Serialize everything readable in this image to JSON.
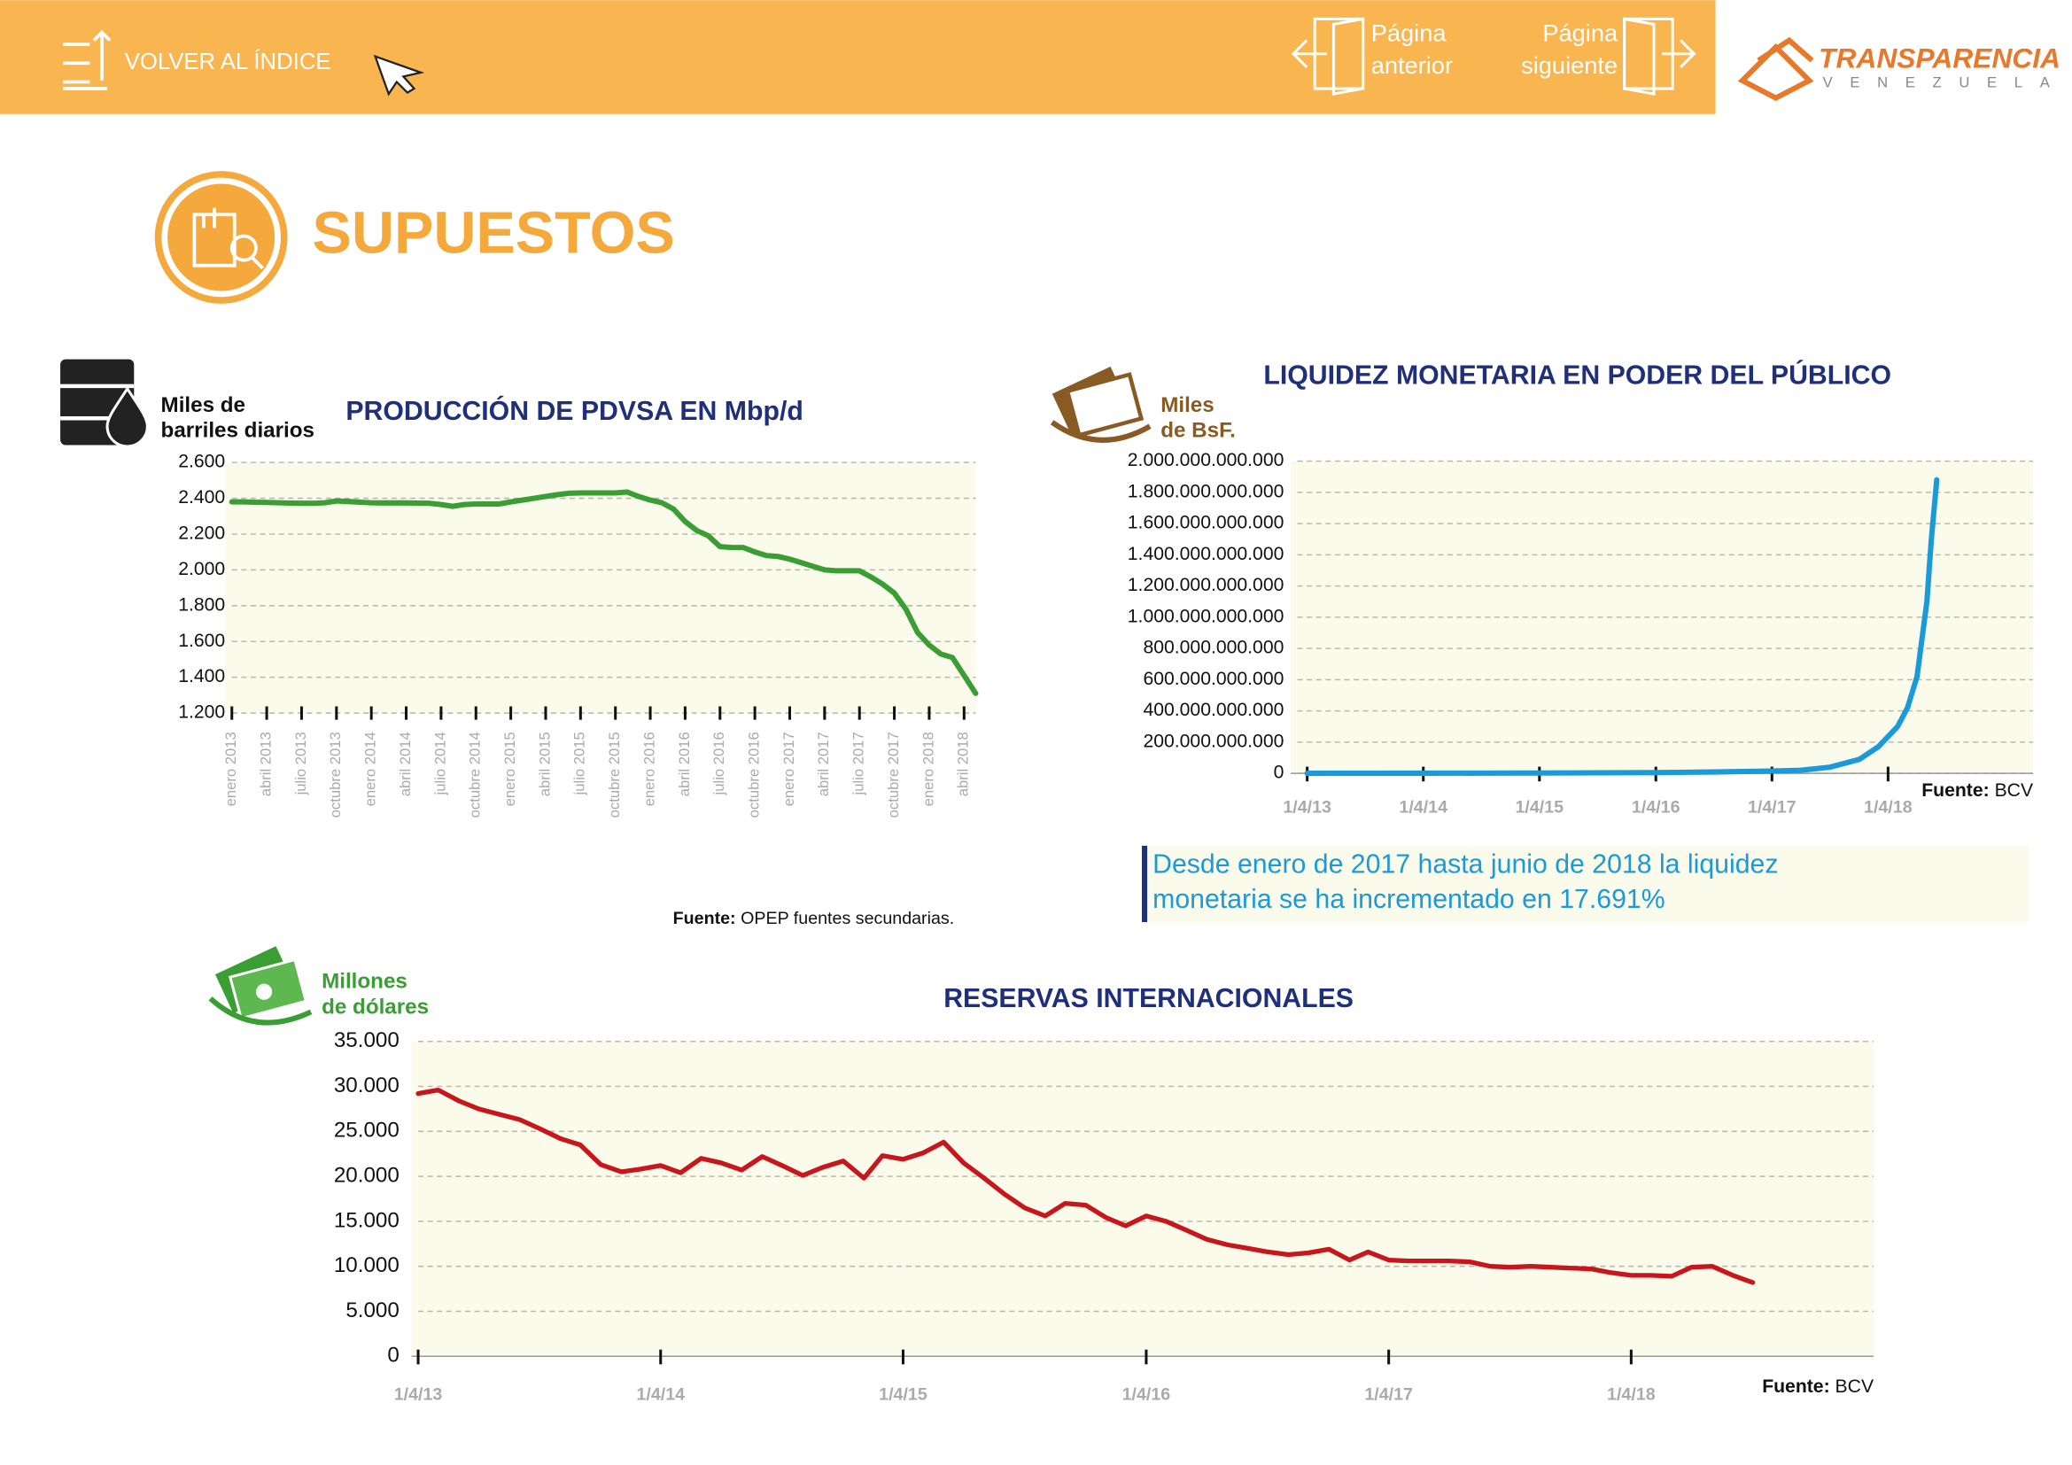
{
  "header": {
    "back": "VOLVER AL ÍNDICE",
    "prev": [
      "Página",
      "anterior"
    ],
    "next": [
      "Página",
      "siguiente"
    ],
    "logo": [
      "TRANSPARENCIA",
      "VENEZUELA"
    ]
  },
  "section_title": "SUPUESTOS",
  "note": [
    "Desde enero de 2017 hasta junio de 2018 la liquidez",
    "monetaria se ha incrementado en 17.691%"
  ],
  "chart_data": [
    {
      "type": "line",
      "title": "PRODUCCIÓN DE PDVSA EN Mbp/d",
      "y_axis_label": [
        "Miles de",
        "barriles diarios"
      ],
      "source": [
        "Fuente:",
        "OPEP fuentes secundarias."
      ],
      "color": "#3a9e35",
      "grid": true,
      "categories": [
        "enero 2013",
        null,
        null,
        "abril 2013",
        null,
        null,
        "julio 2013",
        null,
        null,
        "octubre 2013",
        null,
        null,
        "enero 2014",
        null,
        null,
        "abril 2014",
        null,
        null,
        "julio 2014",
        null,
        null,
        "octubre 2014",
        null,
        null,
        "enero 2015",
        null,
        null,
        "abril 2015",
        null,
        null,
        "julio 2015",
        null,
        null,
        "octubre 2015",
        null,
        null,
        "enero 2016",
        null,
        null,
        "abril 2016",
        null,
        null,
        "julio 2016",
        null,
        null,
        "octubre 2016",
        null,
        null,
        "enero 2017",
        null,
        null,
        "abril 2017",
        null,
        null,
        "julio 2017",
        null,
        null,
        "octubre 2017",
        null,
        null,
        "enero 2018",
        null,
        null,
        "abril 2018",
        null
      ],
      "values": [
        2380,
        2380,
        2378,
        2377,
        2375,
        2373,
        2372,
        2372,
        2375,
        2385,
        2382,
        2378,
        2375,
        2374,
        2374,
        2374,
        2373,
        2372,
        2365,
        2355,
        2365,
        2368,
        2368,
        2368,
        2380,
        2390,
        2400,
        2410,
        2420,
        2428,
        2430,
        2430,
        2430,
        2430,
        2435,
        2410,
        2390,
        2375,
        2340,
        2270,
        2220,
        2190,
        2130,
        2125,
        2125,
        2100,
        2080,
        2075,
        2060,
        2040,
        2020,
        2000,
        1995,
        1995,
        1995,
        1960,
        1920,
        1870,
        1780,
        1650,
        1580,
        1530,
        1510,
        1410,
        1310
      ],
      "ylim": [
        1200,
        2600
      ],
      "yticks": [
        {
          "value": 1200,
          "label": "1.200"
        },
        {
          "value": 1400,
          "label": "1.400"
        },
        {
          "value": 1600,
          "label": "1.600"
        },
        {
          "value": 1800,
          "label": "1.800"
        },
        {
          "value": 2000,
          "label": "2.000"
        },
        {
          "value": 2200,
          "label": "2.200"
        },
        {
          "value": 2400,
          "label": "2.400"
        },
        {
          "value": 2600,
          "label": "2.600"
        }
      ]
    },
    {
      "type": "line",
      "title": "LIQUIDEZ MONETARIA EN PODER DEL PÚBLICO",
      "y_axis_label": [
        "Miles",
        "de BsF."
      ],
      "source": [
        "Fuente:",
        "BCV"
      ],
      "color": "#1a9ad9",
      "grid": true,
      "x": [
        "2013-04-01",
        "2013-10-01",
        "2014-04-01",
        "2014-10-01",
        "2015-04-01",
        "2015-10-01",
        "2016-04-01",
        "2016-10-01",
        "2017-04-01",
        "2017-07-01",
        "2017-10-01",
        "2018-01-01",
        "2018-03-01",
        "2018-05-01",
        "2018-06-01",
        "2018-07-01",
        "2018-08-01",
        "2018-08-15",
        "2018-09-01"
      ],
      "values": [
        400000000,
        700000000,
        1000000000,
        1500000000,
        2200000000,
        3500000000,
        5000000000,
        9000000000,
        15000000000,
        20000000000,
        40000000000,
        90000000000,
        170000000000,
        300000000000,
        420000000000,
        620000000000,
        1100000000000,
        1500000000000,
        1880000000000
      ],
      "xlim": [
        "2013-03-01",
        "2019-07-01"
      ],
      "xticks": [
        {
          "value": "2013-04-01",
          "label": "1/4/13"
        },
        {
          "value": "2014-04-01",
          "label": "1/4/14"
        },
        {
          "value": "2015-04-01",
          "label": "1/4/15"
        },
        {
          "value": "2016-04-01",
          "label": "1/4/16"
        },
        {
          "value": "2017-04-01",
          "label": "1/4/17"
        },
        {
          "value": "2018-04-01",
          "label": "1/4/18"
        }
      ],
      "ylim": [
        0,
        2000000000000
      ],
      "yticks": [
        0,
        {
          "value": 200000000000,
          "label": "200.000.000.000"
        },
        {
          "value": 400000000000,
          "label": "400.000.000.000"
        },
        {
          "value": 600000000000,
          "label": "600.000.000.000"
        },
        {
          "value": 800000000000,
          "label": "800.000.000.000"
        },
        {
          "value": 1000000000000,
          "label": "1.000.000.000.000"
        },
        {
          "value": 1200000000000,
          "label": "1.200.000.000.000"
        },
        {
          "value": 1400000000000,
          "label": "1.400.000.000.000"
        },
        {
          "value": 1600000000000,
          "label": "1.600.000.000.000"
        },
        {
          "value": 1800000000000,
          "label": "1.800.000.000.000"
        },
        {
          "value": 2000000000000,
          "label": "2.000.000.000.000"
        }
      ]
    },
    {
      "type": "line",
      "title": "RESERVAS INTERNACIONALES",
      "y_axis_label": [
        "Millones",
        "de dólares"
      ],
      "source": [
        "Fuente:",
        "BCV"
      ],
      "color": "#c8161d",
      "grid": true,
      "x": [
        "2013-04-01",
        "2013-05-01",
        "2013-06-01",
        "2013-07-01",
        "2013-08-01",
        "2013-09-01",
        "2013-10-01",
        "2013-11-01",
        "2013-12-01",
        "2014-01-01",
        "2014-02-01",
        "2014-03-01",
        "2014-04-01",
        "2014-05-01",
        "2014-06-01",
        "2014-07-01",
        "2014-08-01",
        "2014-09-01",
        "2014-10-01",
        "2014-11-01",
        "2014-12-01",
        "2015-01-01",
        "2015-02-01",
        "2015-03-01",
        "2015-04-01",
        "2015-05-01",
        "2015-06-01",
        "2015-07-01",
        "2015-08-01",
        "2015-09-01",
        "2015-10-01",
        "2015-11-01",
        "2015-12-01",
        "2016-01-01",
        "2016-02-01",
        "2016-03-01",
        "2016-04-01",
        "2016-05-01",
        "2016-06-01",
        "2016-07-01",
        "2016-08-01",
        "2016-09-01",
        "2016-10-01",
        "2016-11-01",
        "2016-12-01",
        "2017-01-01",
        "2017-02-01",
        "2017-03-01",
        "2017-04-01",
        "2017-05-01",
        "2017-06-01",
        "2017-07-01",
        "2017-08-01",
        "2017-09-01",
        "2017-10-01",
        "2017-11-01",
        "2017-12-01",
        "2018-01-01",
        "2018-02-01",
        "2018-03-01",
        "2018-04-01",
        "2018-05-01",
        "2018-06-01",
        "2018-07-01",
        "2018-08-01",
        "2018-09-01",
        "2018-10-01"
      ],
      "values": [
        29200,
        29600,
        28400,
        27500,
        26900,
        26300,
        25300,
        24200,
        23500,
        21300,
        20500,
        20800,
        21200,
        20400,
        22000,
        21500,
        20700,
        22200,
        21200,
        20100,
        21000,
        21700,
        19800,
        22300,
        21900,
        22600,
        23800,
        21500,
        19800,
        18000,
        16500,
        15600,
        17000,
        16800,
        15400,
        14500,
        15600,
        15000,
        14000,
        13000,
        12400,
        12000,
        11600,
        11300,
        11500,
        11900,
        10700,
        11600,
        10700,
        10600,
        10600,
        10600,
        10500,
        10000,
        9900,
        10000,
        9900,
        9800,
        9700,
        9300,
        9000,
        9000,
        8900,
        9900,
        10000,
        9000,
        8200
      ],
      "xlim": [
        "2013-04-01",
        "2019-04-01"
      ],
      "xticks": [
        {
          "value": "2013-04-01",
          "label": "1/4/13"
        },
        {
          "value": "2014-04-01",
          "label": "1/4/14"
        },
        {
          "value": "2015-04-01",
          "label": "1/4/15"
        },
        {
          "value": "2016-04-01",
          "label": "1/4/16"
        },
        {
          "value": "2017-04-01",
          "label": "1/4/17"
        },
        {
          "value": "2018-04-01",
          "label": "1/4/18"
        }
      ],
      "ylim": [
        0,
        35000
      ],
      "yticks": [
        0,
        {
          "value": 5000,
          "label": "5.000"
        },
        {
          "value": 10000,
          "label": "10.000"
        },
        {
          "value": 15000,
          "label": "15.000"
        },
        {
          "value": 20000,
          "label": "20.000"
        },
        {
          "value": 25000,
          "label": "25.000"
        },
        {
          "value": 30000,
          "label": "30.000"
        },
        {
          "value": 35000,
          "label": "35.000"
        }
      ]
    }
  ]
}
